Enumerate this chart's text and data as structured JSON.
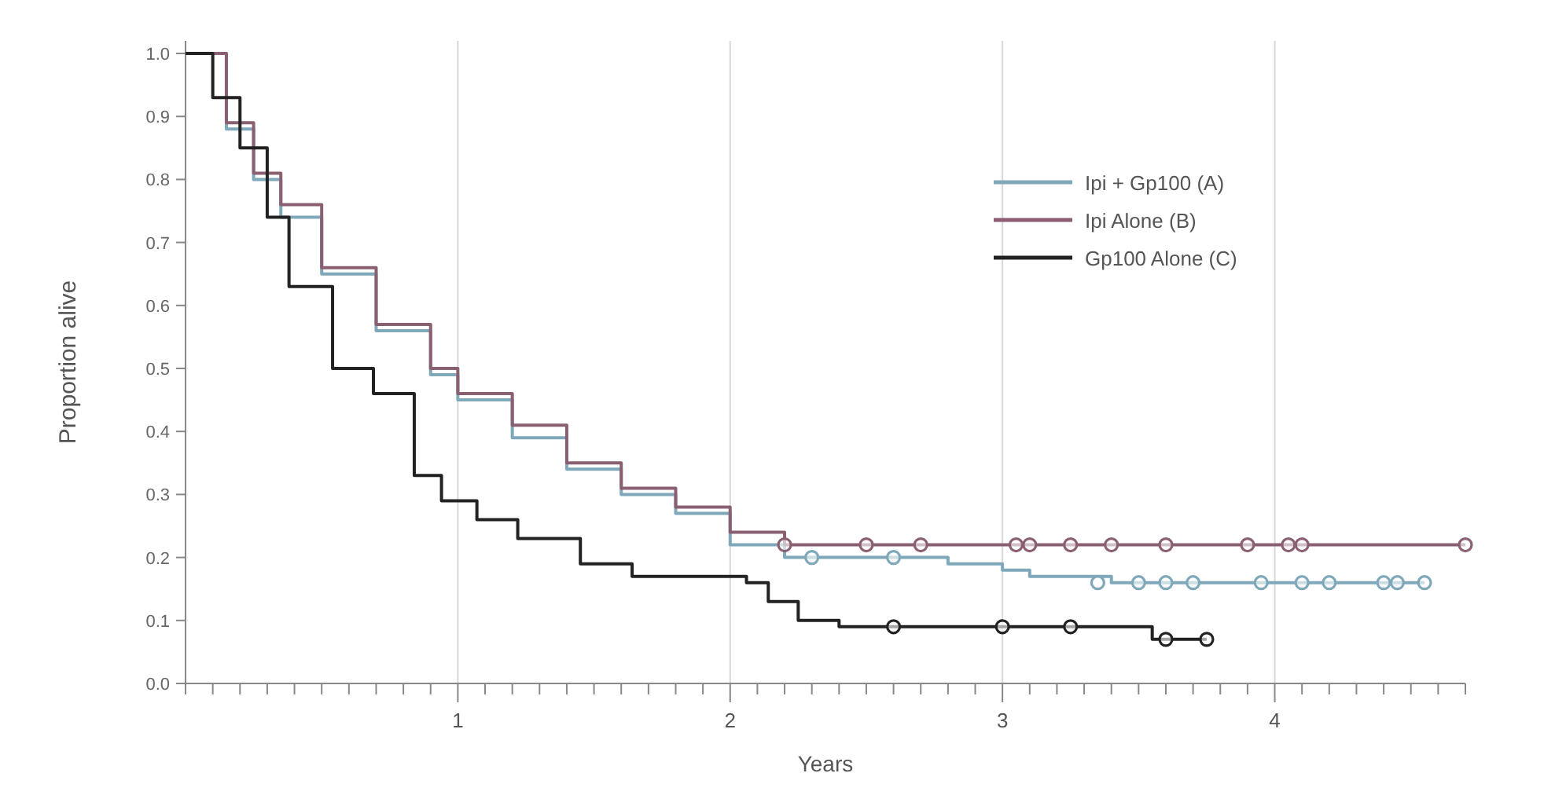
{
  "chart_data": {
    "type": "step",
    "xlabel": "Years",
    "ylabel": "Proportion alive",
    "xlim": [
      0,
      4.7
    ],
    "ylim": [
      0,
      1.02
    ],
    "xticks": [
      {
        "value": 0,
        "label": null
      },
      {
        "value": 0.1,
        "label": null
      },
      {
        "value": 0.2,
        "label": null
      },
      {
        "value": 0.3,
        "label": null
      },
      {
        "value": 0.4,
        "label": null
      },
      {
        "value": 0.5,
        "label": null
      },
      {
        "value": 0.6,
        "label": null
      },
      {
        "value": 0.7,
        "label": null
      },
      {
        "value": 0.8,
        "label": null
      },
      {
        "value": 0.9,
        "label": null
      },
      1,
      {
        "value": 1.1,
        "label": null
      },
      {
        "value": 1.2,
        "label": null
      },
      {
        "value": 1.3,
        "label": null
      },
      {
        "value": 1.4,
        "label": null
      },
      {
        "value": 1.5,
        "label": null
      },
      {
        "value": 1.6,
        "label": null
      },
      {
        "value": 1.7,
        "label": null
      },
      {
        "value": 1.8,
        "label": null
      },
      {
        "value": 1.9,
        "label": null
      },
      2,
      {
        "value": 2.1,
        "label": null
      },
      {
        "value": 2.2,
        "label": null
      },
      {
        "value": 2.3,
        "label": null
      },
      {
        "value": 2.4,
        "label": null
      },
      {
        "value": 2.5,
        "label": null
      },
      {
        "value": 2.6,
        "label": null
      },
      {
        "value": 2.7,
        "label": null
      },
      {
        "value": 2.8,
        "label": null
      },
      {
        "value": 2.9,
        "label": null
      },
      3,
      {
        "value": 3.1,
        "label": null
      },
      {
        "value": 3.2,
        "label": null
      },
      {
        "value": 3.3,
        "label": null
      },
      {
        "value": 3.4,
        "label": null
      },
      {
        "value": 3.5,
        "label": null
      },
      {
        "value": 3.6,
        "label": null
      },
      {
        "value": 3.7,
        "label": null
      },
      {
        "value": 3.8,
        "label": null
      },
      {
        "value": 3.9,
        "label": null
      },
      4,
      {
        "value": 4.1,
        "label": null
      },
      {
        "value": 4.2,
        "label": null
      },
      {
        "value": 4.3,
        "label": null
      },
      {
        "value": 4.4,
        "label": null
      },
      {
        "value": 4.5,
        "label": null
      },
      {
        "value": 4.6,
        "label": null
      },
      {
        "value": 4.7,
        "label": null
      }
    ],
    "yticks": [
      {
        "value": 0,
        "label": "0.0"
      },
      0.1,
      0.2,
      0.3,
      0.4,
      0.5,
      0.6,
      0.7,
      0.8,
      0.9,
      {
        "value": 1,
        "label": "1.0"
      }
    ],
    "grid": "x",
    "legend": "top right",
    "line_style": "solid",
    "series": [
      {
        "name": "Ipi + Gp100 (A)",
        "color": "#7fa8ba",
        "x": [
          0,
          0.15,
          0.25,
          0.35,
          0.5,
          0.7,
          0.9,
          1.0,
          1.2,
          1.4,
          1.6,
          1.8,
          2.0,
          2.2,
          2.8,
          3.0,
          3.1,
          3.4,
          4.55
        ],
        "values": [
          1,
          0.88,
          0.8,
          0.74,
          0.65,
          0.56,
          0.49,
          0.45,
          0.39,
          0.34,
          0.3,
          0.27,
          0.22,
          0.2,
          0.19,
          0.18,
          0.17,
          0.16,
          0.16
        ]
      },
      {
        "name": "Ipi Alone (B)",
        "color": "#8a5f72",
        "x": [
          0,
          0.15,
          0.25,
          0.35,
          0.5,
          0.7,
          0.9,
          1.0,
          1.2,
          1.4,
          1.6,
          1.8,
          2.0,
          2.2,
          4.7
        ],
        "values": [
          1,
          0.89,
          0.81,
          0.76,
          0.66,
          0.57,
          0.5,
          0.46,
          0.41,
          0.35,
          0.31,
          0.28,
          0.24,
          0.22,
          0.22
        ]
      },
      {
        "name": "Gp100 Alone (C)",
        "color": "#222222",
        "x": [
          0,
          0.1,
          0.2,
          0.3,
          0.38,
          0.54,
          0.69,
          0.84,
          0.94,
          1.07,
          1.22,
          1.45,
          1.64,
          2.06,
          2.14,
          2.25,
          2.4,
          3.55,
          3.75
        ],
        "values": [
          1,
          0.93,
          0.85,
          0.74,
          0.63,
          0.5,
          0.46,
          0.33,
          0.29,
          0.26,
          0.23,
          0.19,
          0.17,
          0.16,
          0.13,
          0.1,
          0.09,
          0.07,
          0.07
        ]
      },
      {
        "type": "scatter",
        "marker": "circle",
        "color": "#7fa8ba",
        "x": [
          2.3,
          2.6,
          3.35,
          3.5,
          3.6,
          3.7,
          3.95,
          4.1,
          4.2,
          4.4,
          4.45,
          4.55
        ],
        "values": [
          0.2,
          0.2,
          0.16,
          0.16,
          0.16,
          0.16,
          0.16,
          0.16,
          0.16,
          0.16,
          0.16,
          0.16
        ]
      },
      {
        "type": "scatter",
        "marker": "circle",
        "color": "#8a5f72",
        "x": [
          2.2,
          2.5,
          2.7,
          3.05,
          3.1,
          3.25,
          3.4,
          3.6,
          3.9,
          4.05,
          4.1,
          4.7
        ],
        "values": [
          0.22,
          0.22,
          0.22,
          0.22,
          0.22,
          0.22,
          0.22,
          0.22,
          0.22,
          0.22,
          0.22,
          0.22
        ]
      },
      {
        "type": "scatter",
        "marker": "circle",
        "color": "#222222",
        "x": [
          2.6,
          3.0,
          3.25,
          3.6,
          3.75
        ],
        "values": [
          0.09,
          0.09,
          0.09,
          0.07,
          0.07
        ]
      }
    ]
  }
}
